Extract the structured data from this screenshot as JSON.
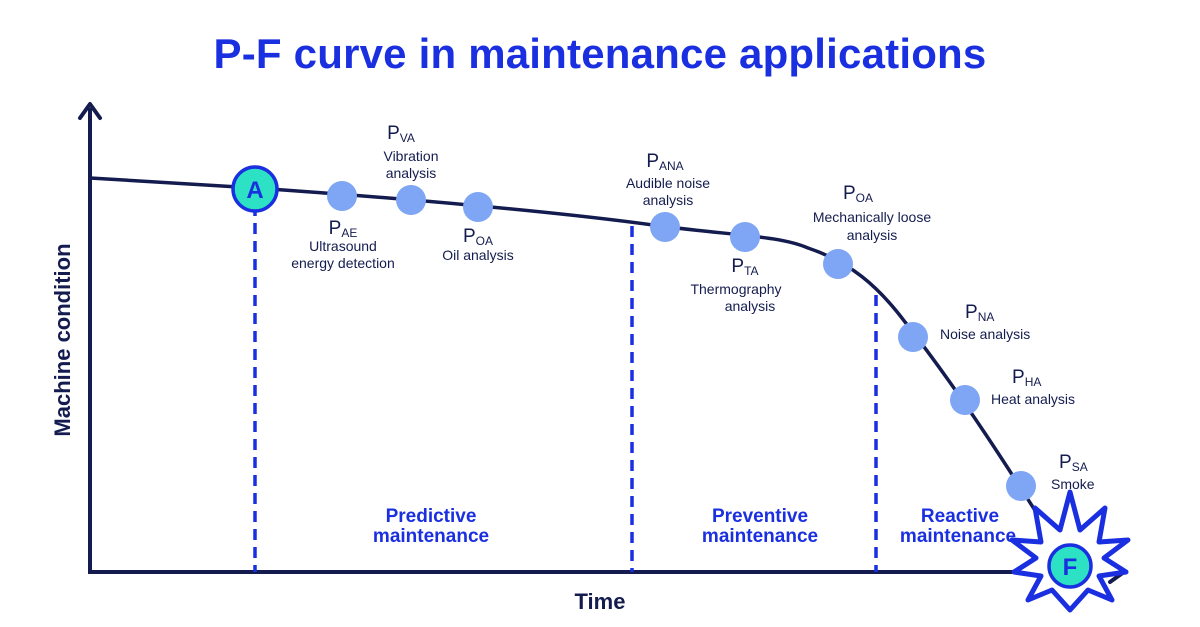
{
  "title": "P-F curve in maintenance applications",
  "axes": {
    "y_label": "Machine condition",
    "x_label": "Time"
  },
  "markers": {
    "a": "A",
    "f": "F"
  },
  "zones": [
    {
      "line1": "Predictive",
      "line2": "maintenance"
    },
    {
      "line1": "Preventive",
      "line2": "maintenance"
    },
    {
      "line1": "Reactive",
      "line2": "maintenance"
    }
  ],
  "points": [
    {
      "p": "P",
      "sub": "AE",
      "desc": [
        "Ultrasound",
        "energy detection"
      ]
    },
    {
      "p": "P",
      "sub": "VA",
      "desc": [
        "Vibration",
        "analysis"
      ]
    },
    {
      "p": "P",
      "sub": "OA",
      "desc": [
        "Oil analysis"
      ]
    },
    {
      "p": "P",
      "sub": "ANA",
      "desc": [
        "Audible noise",
        "analysis"
      ]
    },
    {
      "p": "P",
      "sub": "TA",
      "desc": [
        "Thermography",
        "analysis"
      ]
    },
    {
      "p": "P",
      "sub": "OA",
      "desc": [
        "Mechanically loose",
        "analysis"
      ]
    },
    {
      "p": "P",
      "sub": "NA",
      "desc": [
        "Noise analysis"
      ]
    },
    {
      "p": "P",
      "sub": "HA",
      "desc": [
        "Heat analysis"
      ]
    },
    {
      "p": "P",
      "sub": "SA",
      "desc": [
        "Smoke"
      ]
    }
  ],
  "colors": {
    "title": "#1a2fe0",
    "curve": "#141c4f",
    "dots": "#7ea6f5",
    "marker_fill": "#2de2c4"
  }
}
